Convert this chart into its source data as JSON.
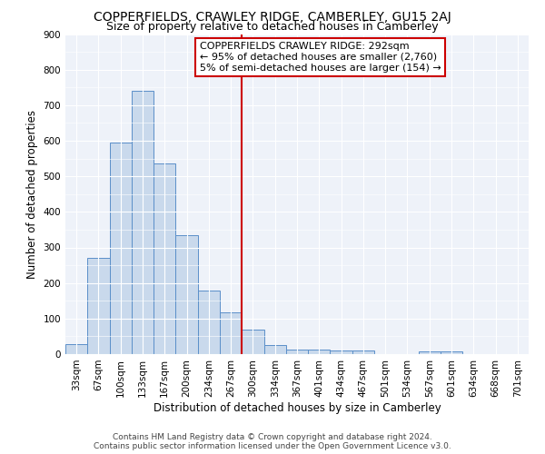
{
  "title": "COPPERFIELDS, CRAWLEY RIDGE, CAMBERLEY, GU15 2AJ",
  "subtitle": "Size of property relative to detached houses in Camberley",
  "xlabel": "Distribution of detached houses by size in Camberley",
  "ylabel": "Number of detached properties",
  "categories": [
    "33sqm",
    "67sqm",
    "100sqm",
    "133sqm",
    "167sqm",
    "200sqm",
    "234sqm",
    "267sqm",
    "300sqm",
    "334sqm",
    "367sqm",
    "401sqm",
    "434sqm",
    "467sqm",
    "501sqm",
    "534sqm",
    "567sqm",
    "601sqm",
    "634sqm",
    "668sqm",
    "701sqm"
  ],
  "values": [
    27,
    270,
    595,
    740,
    535,
    335,
    178,
    117,
    68,
    25,
    13,
    13,
    10,
    10,
    0,
    0,
    8,
    8,
    0,
    0,
    0
  ],
  "bar_color": "#c9d9ec",
  "bar_edge_color": "#5b8fc9",
  "vline_color": "#cc0000",
  "vline_pos": 7.5,
  "annotation_line0": "COPPERFIELDS CRAWLEY RIDGE: 292sqm",
  "annotation_line1": "← 95% of detached houses are smaller (2,760)",
  "annotation_line2": "5% of semi-detached houses are larger (154) →",
  "annotation_box_color": "#ffffff",
  "annotation_box_edge": "#cc0000",
  "ylim": [
    0,
    900
  ],
  "yticks": [
    0,
    100,
    200,
    300,
    400,
    500,
    600,
    700,
    800,
    900
  ],
  "footer1": "Contains HM Land Registry data © Crown copyright and database right 2024.",
  "footer2": "Contains public sector information licensed under the Open Government Licence v3.0.",
  "bg_color": "#eef2f9",
  "title_fontsize": 10,
  "subtitle_fontsize": 9,
  "axis_label_fontsize": 8.5,
  "tick_fontsize": 7.5,
  "annot_fontsize": 8,
  "footer_fontsize": 6.5
}
